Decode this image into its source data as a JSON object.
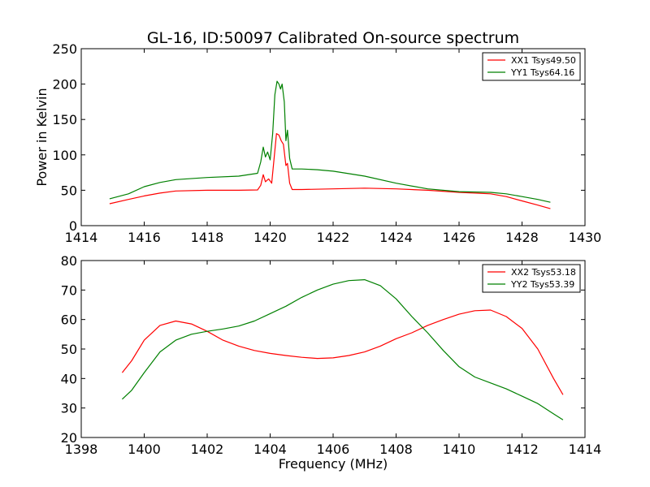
{
  "title": "GL-16, ID:50097 Calibrated On-source spectrum",
  "chart_data": [
    {
      "type": "line",
      "xlim": [
        1414,
        1430
      ],
      "ylim": [
        0,
        250
      ],
      "xticks": [
        1414,
        1416,
        1418,
        1420,
        1422,
        1424,
        1426,
        1428,
        1430
      ],
      "yticks": [
        0,
        50,
        100,
        150,
        200,
        250
      ],
      "xlabel": "",
      "ylabel": "Power in Kelvin",
      "legend_position": "top-right",
      "series": [
        {
          "name": "XX1 Tsys49.50",
          "color": "#ff0000",
          "points": [
            [
              1414.9,
              31
            ],
            [
              1415.5,
              37
            ],
            [
              1416,
              42
            ],
            [
              1416.5,
              46
            ],
            [
              1417,
              49
            ],
            [
              1418,
              50
            ],
            [
              1419,
              50
            ],
            [
              1419.6,
              50.5
            ],
            [
              1419.7,
              57
            ],
            [
              1419.78,
              72
            ],
            [
              1419.85,
              62
            ],
            [
              1419.95,
              66
            ],
            [
              1420.05,
              60
            ],
            [
              1420.12,
              92
            ],
            [
              1420.2,
              130
            ],
            [
              1420.28,
              128
            ],
            [
              1420.35,
              120
            ],
            [
              1420.42,
              115
            ],
            [
              1420.5,
              85
            ],
            [
              1420.55,
              88
            ],
            [
              1420.62,
              60
            ],
            [
              1420.7,
              51
            ],
            [
              1421,
              51
            ],
            [
              1422,
              52
            ],
            [
              1423,
              53
            ],
            [
              1424,
              52
            ],
            [
              1425,
              50
            ],
            [
              1426,
              47
            ],
            [
              1427,
              45
            ],
            [
              1427.5,
              41
            ],
            [
              1428,
              35
            ],
            [
              1428.5,
              29
            ],
            [
              1428.9,
              24
            ]
          ]
        },
        {
          "name": "YY1 Tsys64.16",
          "color": "#008000",
          "points": [
            [
              1414.9,
              38
            ],
            [
              1415.5,
              45
            ],
            [
              1416,
              55
            ],
            [
              1416.5,
              61
            ],
            [
              1417,
              65
            ],
            [
              1418,
              68
            ],
            [
              1419,
              70
            ],
            [
              1419.6,
              74
            ],
            [
              1419.7,
              90
            ],
            [
              1419.78,
              111
            ],
            [
              1419.85,
              97
            ],
            [
              1419.92,
              104
            ],
            [
              1420,
              93
            ],
            [
              1420.08,
              130
            ],
            [
              1420.15,
              185
            ],
            [
              1420.22,
              204
            ],
            [
              1420.28,
              200
            ],
            [
              1420.33,
              193
            ],
            [
              1420.38,
              200
            ],
            [
              1420.45,
              175
            ],
            [
              1420.5,
              120
            ],
            [
              1420.55,
              135
            ],
            [
              1420.62,
              95
            ],
            [
              1420.7,
              80
            ],
            [
              1421,
              80
            ],
            [
              1421.5,
              79
            ],
            [
              1422,
              77
            ],
            [
              1423,
              70
            ],
            [
              1424,
              60
            ],
            [
              1425,
              52
            ],
            [
              1426,
              48
            ],
            [
              1427,
              47
            ],
            [
              1427.5,
              45
            ],
            [
              1428,
              41
            ],
            [
              1428.5,
              37
            ],
            [
              1428.9,
              33
            ]
          ]
        }
      ]
    },
    {
      "type": "line",
      "xlim": [
        1398,
        1414
      ],
      "ylim": [
        20,
        80
      ],
      "xticks": [
        1398,
        1400,
        1402,
        1404,
        1406,
        1408,
        1410,
        1412,
        1414
      ],
      "yticks": [
        20,
        30,
        40,
        50,
        60,
        70,
        80
      ],
      "xlabel": "Frequency (MHz)",
      "ylabel": "",
      "legend_position": "top-right",
      "series": [
        {
          "name": "XX2 Tsys53.18",
          "color": "#ff0000",
          "points": [
            [
              1399.3,
              42
            ],
            [
              1399.6,
              46
            ],
            [
              1400,
              53
            ],
            [
              1400.5,
              58
            ],
            [
              1401,
              59.5
            ],
            [
              1401.5,
              58.5
            ],
            [
              1402,
              56
            ],
            [
              1402.5,
              53
            ],
            [
              1403,
              51
            ],
            [
              1403.5,
              49.5
            ],
            [
              1404,
              48.5
            ],
            [
              1404.5,
              47.8
            ],
            [
              1405,
              47.2
            ],
            [
              1405.5,
              46.8
            ],
            [
              1406,
              47
            ],
            [
              1406.5,
              47.8
            ],
            [
              1407,
              49
            ],
            [
              1407.5,
              51
            ],
            [
              1408,
              53.5
            ],
            [
              1408.5,
              55.5
            ],
            [
              1409,
              58
            ],
            [
              1409.5,
              60
            ],
            [
              1410,
              61.8
            ],
            [
              1410.5,
              63
            ],
            [
              1411,
              63.2
            ],
            [
              1411.5,
              61
            ],
            [
              1412,
              57
            ],
            [
              1412.5,
              50
            ],
            [
              1413,
              40
            ],
            [
              1413.3,
              34.5
            ]
          ]
        },
        {
          "name": "YY2 Tsys53.39",
          "color": "#008000",
          "points": [
            [
              1399.3,
              33
            ],
            [
              1399.6,
              36
            ],
            [
              1400,
              42
            ],
            [
              1400.5,
              49
            ],
            [
              1401,
              53
            ],
            [
              1401.5,
              55
            ],
            [
              1402,
              56
            ],
            [
              1402.5,
              56.8
            ],
            [
              1403,
              57.8
            ],
            [
              1403.5,
              59.5
            ],
            [
              1404,
              62
            ],
            [
              1404.5,
              64.5
            ],
            [
              1405,
              67.5
            ],
            [
              1405.5,
              70
            ],
            [
              1406,
              72
            ],
            [
              1406.5,
              73.2
            ],
            [
              1407,
              73.5
            ],
            [
              1407.5,
              71.5
            ],
            [
              1408,
              67
            ],
            [
              1408.5,
              61
            ],
            [
              1409,
              55.5
            ],
            [
              1409.5,
              49.5
            ],
            [
              1410,
              44
            ],
            [
              1410.5,
              40.5
            ],
            [
              1411,
              38.5
            ],
            [
              1411.5,
              36.5
            ],
            [
              1412,
              34
            ],
            [
              1412.5,
              31.5
            ],
            [
              1413,
              28
            ],
            [
              1413.3,
              26
            ]
          ]
        }
      ]
    }
  ]
}
